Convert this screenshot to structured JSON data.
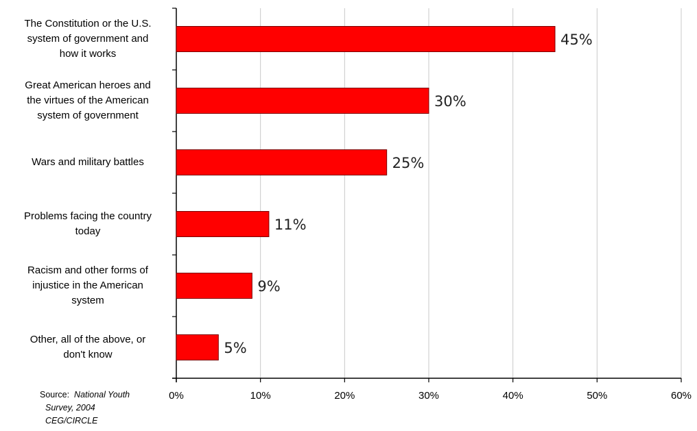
{
  "chart_data": {
    "type": "bar",
    "orientation": "horizontal",
    "categories": [
      [
        "The Constitution or the U.S.",
        "system of government and",
        "how it works"
      ],
      [
        "Great American heroes and",
        "the virtues of the American",
        "system of government"
      ],
      [
        "Wars and military battles"
      ],
      [
        "Problems facing the country",
        "today"
      ],
      [
        "Racism and other forms of",
        "injustice in the American",
        "system"
      ],
      [
        "Other, all of the above, or",
        "don't know"
      ]
    ],
    "values": [
      45,
      30,
      25,
      11,
      9,
      5
    ],
    "value_labels": [
      "45%",
      "30%",
      "25%",
      "11%",
      "9%",
      "5%"
    ],
    "x_ticks": [
      0,
      10,
      20,
      30,
      40,
      50,
      60
    ],
    "x_tick_labels": [
      "0%",
      "10%",
      "20%",
      "30%",
      "40%",
      "50%",
      "60%"
    ],
    "xlim": [
      0,
      60
    ],
    "grid": "vertical",
    "legend": "none",
    "bar_color": "#ff0000",
    "title": "",
    "xlabel": "",
    "ylabel": ""
  },
  "source": {
    "label": "Source:",
    "line1": "National Youth",
    "line2": "Survey, 2004",
    "line3": "CEG/CIRCLE"
  }
}
